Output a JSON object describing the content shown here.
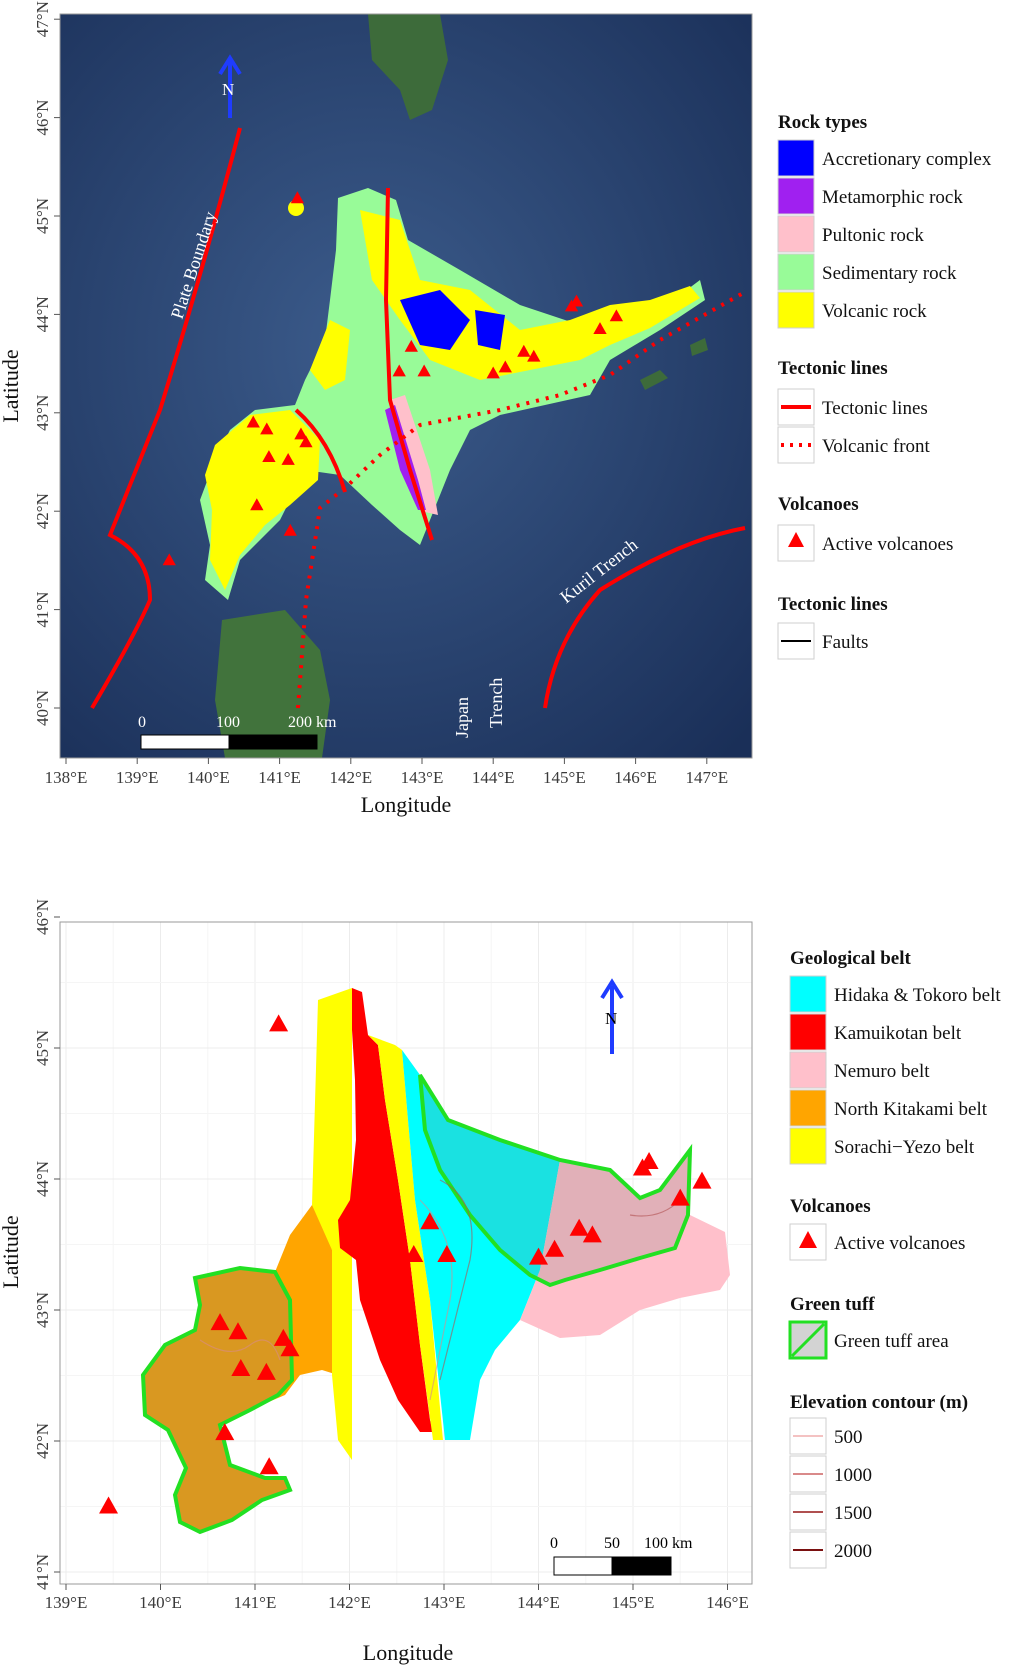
{
  "map1": {
    "x_axis_title": "Longitude",
    "y_axis_title": "Latitude",
    "x_ticks": [
      "138°E",
      "139°E",
      "140°E",
      "141°E",
      "142°E",
      "143°E",
      "144°E",
      "145°E",
      "146°E",
      "147°E"
    ],
    "y_ticks": [
      "40°N",
      "41°N",
      "42°N",
      "43°N",
      "44°N",
      "45°N",
      "46°N",
      "47°N"
    ],
    "north_label": "N",
    "labels": {
      "plate_boundary": "Plate Boundary",
      "kuril_trench": "Kuril Trench",
      "japan": "Japan",
      "trench": "Trench"
    },
    "scale_labels": [
      "0",
      "100",
      "200 km"
    ],
    "legend": {
      "rock_types_title": "Rock types",
      "rock_types": [
        {
          "label": "Accretionary complex",
          "color": "#0000ff"
        },
        {
          "label": "Metamorphic rock",
          "color": "#a020f0"
        },
        {
          "label": "Pultonic rock",
          "color": "#ffc0cb"
        },
        {
          "label": "Sedimentary rock",
          "color": "#98fb98"
        },
        {
          "label": "Volcanic rock",
          "color": "#ffff00"
        }
      ],
      "tectonic_title": "Tectonic lines",
      "tectonic": [
        {
          "label": "Tectonic lines",
          "style": "solid",
          "color": "#ff0000"
        },
        {
          "label": "Volcanic front",
          "style": "dotted",
          "color": "#ff0000"
        }
      ],
      "volcano_title": "Volcanoes",
      "volcano_label": "Active volcanoes",
      "faults_title": "Tectonic lines",
      "faults_label": "Faults"
    }
  },
  "map2": {
    "x_axis_title": "Longitude",
    "y_axis_title": "Latitude",
    "x_ticks": [
      "139°E",
      "140°E",
      "141°E",
      "142°E",
      "143°E",
      "144°E",
      "145°E",
      "146°E"
    ],
    "y_ticks": [
      "41°N",
      "42°N",
      "43°N",
      "44°N",
      "45°N",
      "46°N"
    ],
    "north_label": "N",
    "scale_labels": [
      "0",
      "50",
      "100 km"
    ],
    "legend": {
      "belt_title": "Geological belt",
      "belts": [
        {
          "label": "Hidaka & Tokoro belt",
          "color": "#00ffff"
        },
        {
          "label": "Kamuikotan belt",
          "color": "#ff0000"
        },
        {
          "label": "Nemuro belt",
          "color": "#ffc0cb"
        },
        {
          "label": "North Kitakami belt",
          "color": "#ffa500"
        },
        {
          "label": "Sorachi−Yezo belt",
          "color": "#ffff00"
        }
      ],
      "volcano_title": "Volcanoes",
      "volcano_label": "Active volcanoes",
      "green_tuff_title": "Green tuff",
      "green_tuff_label": "Green tuff area",
      "contour_title": "Elevation contour (m)",
      "contours": [
        {
          "label": "500",
          "color": "#f4c2c2"
        },
        {
          "label": "1000",
          "color": "#d98a8a"
        },
        {
          "label": "1500",
          "color": "#b05050"
        },
        {
          "label": "2000",
          "color": "#7a1010"
        }
      ]
    }
  },
  "volcanoes": [
    {
      "lon": 139.45,
      "lat": 41.5
    },
    {
      "lon": 140.68,
      "lat": 42.06
    },
    {
      "lon": 141.15,
      "lat": 41.8
    },
    {
      "lon": 140.63,
      "lat": 42.9
    },
    {
      "lon": 140.82,
      "lat": 42.83
    },
    {
      "lon": 140.85,
      "lat": 42.55
    },
    {
      "lon": 141.12,
      "lat": 42.52
    },
    {
      "lon": 141.3,
      "lat": 42.78
    },
    {
      "lon": 141.37,
      "lat": 42.7
    },
    {
      "lon": 141.25,
      "lat": 45.18
    },
    {
      "lon": 142.68,
      "lat": 43.42
    },
    {
      "lon": 142.85,
      "lat": 43.67
    },
    {
      "lon": 143.03,
      "lat": 43.42
    },
    {
      "lon": 144.0,
      "lat": 43.4
    },
    {
      "lon": 144.17,
      "lat": 43.46
    },
    {
      "lon": 144.43,
      "lat": 43.62
    },
    {
      "lon": 144.57,
      "lat": 43.57
    },
    {
      "lon": 145.1,
      "lat": 44.08
    },
    {
      "lon": 145.17,
      "lat": 44.13
    },
    {
      "lon": 145.5,
      "lat": 43.85
    },
    {
      "lon": 145.73,
      "lat": 43.98
    }
  ]
}
